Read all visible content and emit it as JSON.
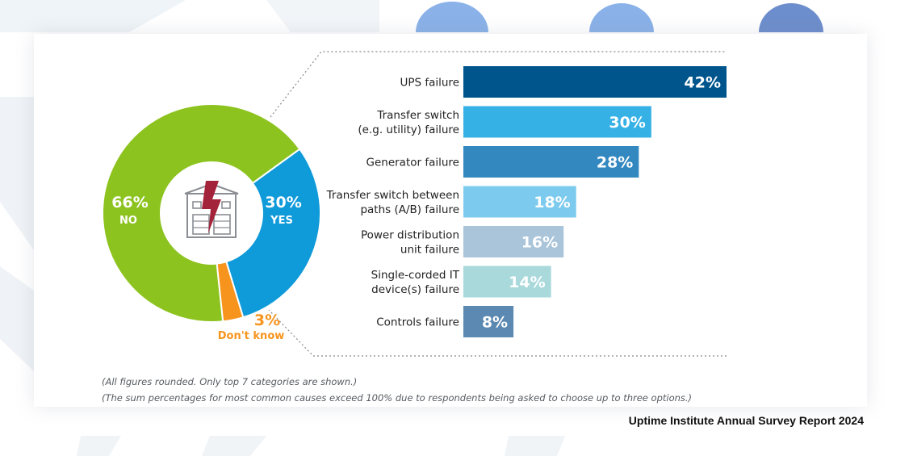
{
  "chart_data": [
    {
      "type": "pie",
      "subtype": "donut",
      "question": "Power-related outage",
      "slices": [
        {
          "label": "NO",
          "value": 66,
          "display": "66%",
          "color": "#8dc31f"
        },
        {
          "label": "YES",
          "value": 30,
          "display": "30%",
          "color": "#0f9ad9"
        },
        {
          "label": "Don't know",
          "value": 3,
          "display": "3%",
          "color": "#f7941d"
        }
      ],
      "center_icon": "power-outage-building-icon"
    },
    {
      "type": "bar",
      "orientation": "horizontal",
      "xlim": [
        0,
        42
      ],
      "categories": [
        [
          "UPS failure"
        ],
        [
          "Transfer switch",
          "(e.g. utility) failure"
        ],
        [
          "Generator failure"
        ],
        [
          "Transfer switch between",
          "paths (A/B) failure"
        ],
        [
          "Power distribution",
          "unit failure"
        ],
        [
          "Single-corded IT",
          "device(s) failure"
        ],
        [
          "Controls failure"
        ]
      ],
      "values": [
        42,
        30,
        28,
        18,
        16,
        14,
        8
      ],
      "labels": [
        "42%",
        "30%",
        "28%",
        "18%",
        "16%",
        "14%",
        "8%"
      ],
      "colors": [
        "#00558d",
        "#36b1e6",
        "#3388c0",
        "#7ccbef",
        "#aac4da",
        "#aad9dc",
        "#5b89b1"
      ]
    }
  ],
  "notes": [
    "(All figures rounded. Only top 7 categories are shown.)",
    "(The sum percentages for most common causes exceed 100% due to respondents being asked to choose up to three options.)"
  ],
  "source": "Uptime Institute Annual Survey Report 2024"
}
